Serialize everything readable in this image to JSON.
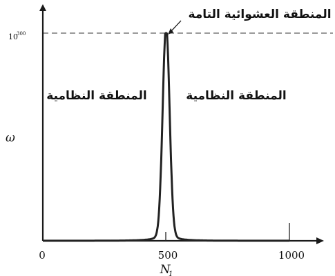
{
  "chart_data": {
    "type": "line",
    "x": [
      0,
      50,
      100,
      150,
      200,
      250,
      300,
      350,
      400,
      425,
      440,
      450,
      460,
      470,
      480,
      485,
      490,
      495,
      500,
      505,
      510,
      515,
      520,
      530,
      540,
      550,
      560,
      575,
      600,
      650,
      700,
      750,
      800,
      850,
      900,
      950,
      1000
    ],
    "values": [
      0,
      0,
      0,
      0,
      0,
      0,
      0,
      0,
      0,
      0,
      0,
      0,
      0,
      0,
      0,
      0,
      0,
      0,
      300,
      0,
      0,
      0,
      0,
      0,
      0,
      0,
      0,
      0,
      0,
      0,
      0,
      0,
      0,
      0,
      0,
      0,
      0
    ],
    "title": "",
    "xlabel_base": "N",
    "xlabel_sub": "1",
    "ylabel": "ω",
    "x_ticks": [
      "0",
      "500",
      "1000"
    ],
    "reference_line": {
      "base": "10",
      "exponent": "300"
    },
    "annotations": {
      "peak": "المنطقة العشوائية التامة",
      "left_region": "المنطقة النظامية",
      "right_region": "المنطقة النظامية"
    },
    "grid": false
  }
}
